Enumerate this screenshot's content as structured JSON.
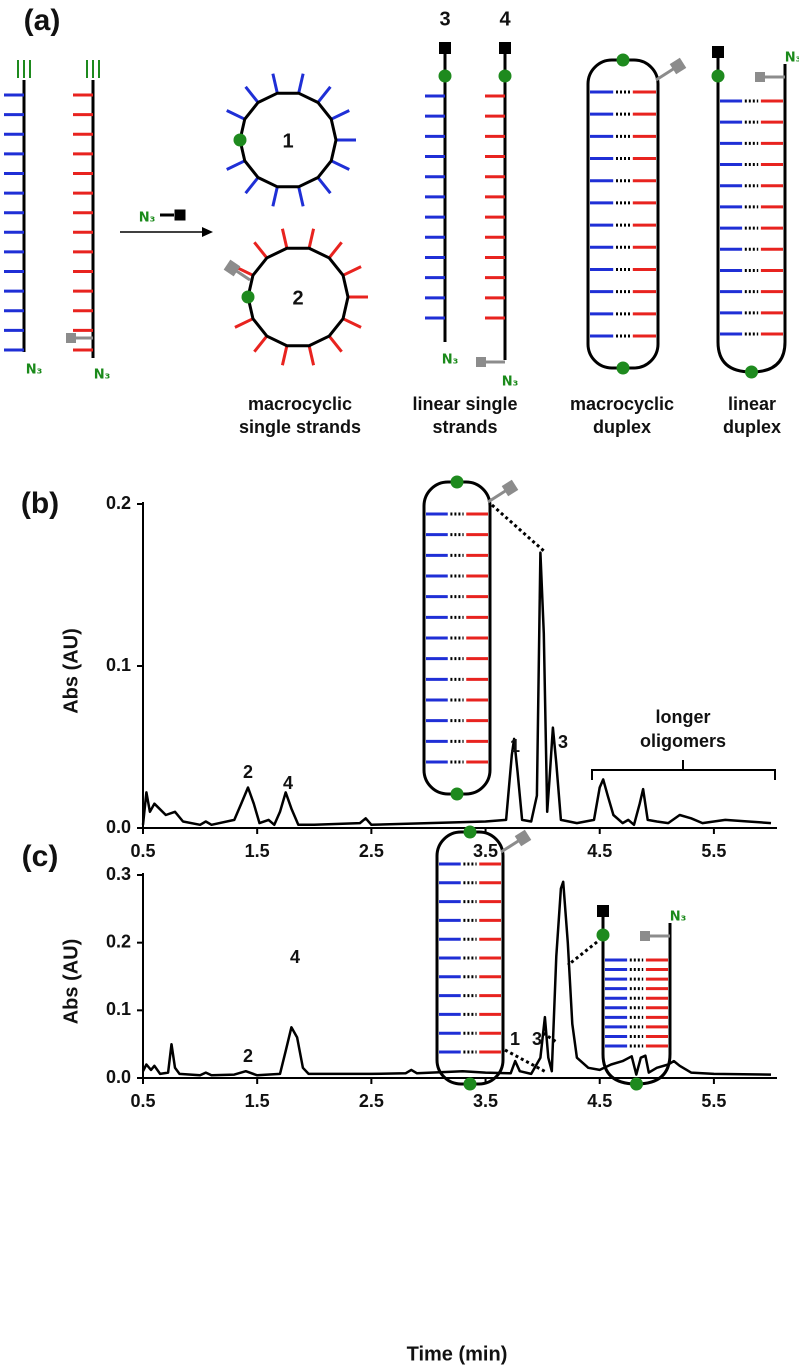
{
  "panel_a": {
    "label": "(a)",
    "compound_labels": [
      "1",
      "2",
      "3",
      "4"
    ],
    "azide_labels": [
      "N₃",
      "N₃",
      "N₃",
      "N₃",
      "N₃",
      "N₃"
    ],
    "captions": [
      [
        "macrocyclic",
        "single strands"
      ],
      [
        "linear single",
        "strands"
      ],
      [
        "macrocyclic",
        "duplex"
      ],
      [
        "linear",
        "duplex"
      ]
    ]
  },
  "chart_data": [
    {
      "type": "line",
      "panel_label": "(b)",
      "y_label": "Abs (AU)",
      "color": "#000000",
      "x": [
        0.5,
        0.53,
        0.56,
        0.6,
        0.7,
        0.78,
        0.85,
        1.0,
        1.05,
        1.1,
        1.3,
        1.36,
        1.42,
        1.47,
        1.52,
        1.6,
        1.65,
        1.7,
        1.75,
        1.8,
        1.86,
        2.0,
        2.4,
        2.45,
        2.5,
        3.0,
        3.5,
        3.68,
        3.73,
        3.75,
        3.78,
        3.82,
        3.9,
        3.95,
        3.98,
        4.01,
        4.04,
        4.06,
        4.09,
        4.12,
        4.16,
        4.3,
        4.45,
        4.5,
        4.53,
        4.57,
        4.62,
        4.7,
        4.75,
        4.8,
        4.85,
        4.88,
        4.92,
        5.0,
        5.1,
        5.2,
        5.3,
        5.4,
        5.6,
        5.8,
        6.0
      ],
      "values": [
        0.002,
        0.022,
        0.01,
        0.015,
        0.008,
        0.01,
        0.004,
        0.002,
        0.004,
        0.002,
        0.005,
        0.015,
        0.025,
        0.015,
        0.003,
        0.005,
        0.002,
        0.01,
        0.022,
        0.012,
        0.002,
        0.002,
        0.003,
        0.006,
        0.002,
        0.003,
        0.004,
        0.005,
        0.045,
        0.055,
        0.035,
        0.005,
        0.004,
        0.02,
        0.17,
        0.12,
        0.01,
        0.03,
        0.062,
        0.04,
        0.005,
        0.003,
        0.005,
        0.025,
        0.03,
        0.02,
        0.008,
        0.003,
        0.005,
        0.002,
        0.015,
        0.024,
        0.005,
        0.004,
        0.003,
        0.008,
        0.006,
        0.003,
        0.005,
        0.004,
        0.003
      ],
      "xlim": [
        0.5,
        6.0
      ],
      "ylim": [
        0,
        0.2
      ],
      "xticks": [
        0.5,
        1.5,
        2.5,
        3.5,
        4.5,
        5.5
      ],
      "yticks": [
        {
          "value": 0,
          "label": "0.0"
        },
        0.1,
        0.2
      ],
      "annotations": [
        "2",
        "4",
        "1",
        "3",
        "longer",
        "oligomers"
      ]
    },
    {
      "type": "line",
      "panel_label": "(c)",
      "y_label": "Abs (AU)",
      "x_label": "Time (min)",
      "color": "#000000",
      "x": [
        0.5,
        0.53,
        0.57,
        0.6,
        0.65,
        0.72,
        0.75,
        0.78,
        0.82,
        1.0,
        1.05,
        1.1,
        1.3,
        1.4,
        1.5,
        1.7,
        1.75,
        1.8,
        1.85,
        1.9,
        1.95,
        2.5,
        2.8,
        2.85,
        2.9,
        3.3,
        3.5,
        3.72,
        3.76,
        3.8,
        3.9,
        3.98,
        4.02,
        4.05,
        4.08,
        4.12,
        4.16,
        4.18,
        4.22,
        4.26,
        4.3,
        4.4,
        4.5,
        4.6,
        4.7,
        4.78,
        4.82,
        4.86,
        4.9,
        4.93,
        5.0,
        5.1,
        5.15,
        5.2,
        5.3,
        5.5,
        6.0
      ],
      "values": [
        0.01,
        0.02,
        0.012,
        0.018,
        0.006,
        0.008,
        0.05,
        0.015,
        0.006,
        0.004,
        0.008,
        0.004,
        0.005,
        0.01,
        0.004,
        0.006,
        0.04,
        0.075,
        0.06,
        0.015,
        0.006,
        0.006,
        0.007,
        0.012,
        0.007,
        0.01,
        0.008,
        0.007,
        0.025,
        0.01,
        0.006,
        0.03,
        0.09,
        0.03,
        0.01,
        0.18,
        0.28,
        0.29,
        0.2,
        0.08,
        0.03,
        0.015,
        0.012,
        0.02,
        0.025,
        0.032,
        0.005,
        0.03,
        0.033,
        0.008,
        0.015,
        0.02,
        0.025,
        0.018,
        0.008,
        0.006,
        0.005
      ],
      "xlim": [
        0.5,
        6.0
      ],
      "ylim": [
        0,
        0.3
      ],
      "xticks": [
        0.5,
        1.5,
        2.5,
        3.5,
        4.5,
        5.5
      ],
      "yticks": [
        {
          "value": 0,
          "label": "0.0"
        },
        0.1,
        0.2,
        0.3
      ],
      "annotations": [
        "4",
        "2",
        "1",
        "3"
      ],
      "azide_labels": [
        "N₃"
      ]
    }
  ]
}
